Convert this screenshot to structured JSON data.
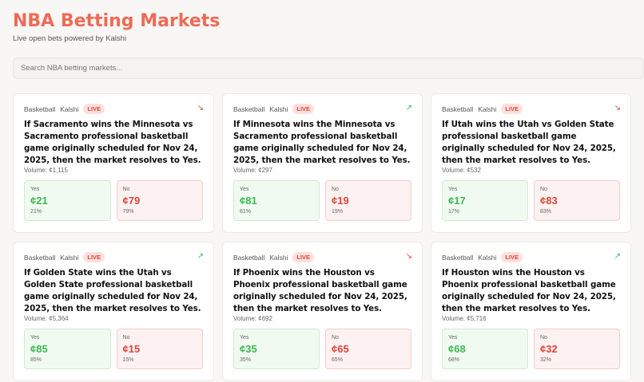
{
  "header": {
    "title": "NBA Betting Markets",
    "subtitle": "Live open bets powered by Kalshi"
  },
  "search": {
    "placeholder": "Search NBA betting markets..."
  },
  "colors": {
    "accent": "#ef6a55",
    "yes": "#3cb94f",
    "no": "#e0453a"
  },
  "markets": [
    {
      "category": "Basketball",
      "source": "Kalshi",
      "status": "LIVE",
      "trend": "down",
      "question": "If Sacramento wins the Minnesota vs Sacramento professional basketball game originally scheduled for Nov 24, 2025, then the market resolves to Yes.",
      "volume": "Volume: ¢1,115",
      "yes_label": "Yes",
      "yes_price": "¢21",
      "yes_pct": "21%",
      "no_label": "No",
      "no_price": "¢79",
      "no_pct": "79%"
    },
    {
      "category": "Basketball",
      "source": "Kalshi",
      "status": "LIVE",
      "trend": "up",
      "question": "If Minnesota wins the Minnesota vs Sacramento professional basketball game originally scheduled for Nov 24, 2025, then the market resolves to Yes.",
      "volume": "Volume: ¢297",
      "yes_label": "Yes",
      "yes_price": "¢81",
      "yes_pct": "81%",
      "no_label": "No",
      "no_price": "¢19",
      "no_pct": "19%"
    },
    {
      "category": "Basketball",
      "source": "Kalshi",
      "status": "LIVE",
      "trend": "down",
      "question": "If Utah wins the Utah vs Golden State professional basketball game originally scheduled for Nov 24, 2025, then the market resolves to Yes.",
      "volume": "Volume: ¢532",
      "yes_label": "Yes",
      "yes_price": "¢17",
      "yes_pct": "17%",
      "no_label": "No",
      "no_price": "¢83",
      "no_pct": "83%"
    },
    {
      "category": "Basketball",
      "source": "Kalshi",
      "status": "LIVE",
      "trend": "up",
      "question": "If Golden State wins the Utah vs Golden State professional basketball game originally scheduled for Nov 24, 2025, then the market resolves to Yes.",
      "volume": "Volume: ¢5,364",
      "yes_label": "Yes",
      "yes_price": "¢85",
      "yes_pct": "85%",
      "no_label": "No",
      "no_price": "¢15",
      "no_pct": "15%"
    },
    {
      "category": "Basketball",
      "source": "Kalshi",
      "status": "LIVE",
      "trend": "down",
      "question": "If Phoenix wins the Houston vs Phoenix professional basketball game originally scheduled for Nov 24, 2025, then the market resolves to Yes.",
      "volume": "Volume: ¢692",
      "yes_label": "Yes",
      "yes_price": "¢35",
      "yes_pct": "35%",
      "no_label": "No",
      "no_price": "¢65",
      "no_pct": "65%"
    },
    {
      "category": "Basketball",
      "source": "Kalshi",
      "status": "LIVE",
      "trend": "up",
      "question": "If Houston wins the Houston vs Phoenix professional basketball game originally scheduled for Nov 24, 2025, then the market resolves to Yes.",
      "volume": "Volume: ¢5,716",
      "yes_label": "Yes",
      "yes_price": "¢68",
      "yes_pct": "68%",
      "no_label": "No",
      "no_price": "¢32",
      "no_pct": "32%"
    }
  ]
}
